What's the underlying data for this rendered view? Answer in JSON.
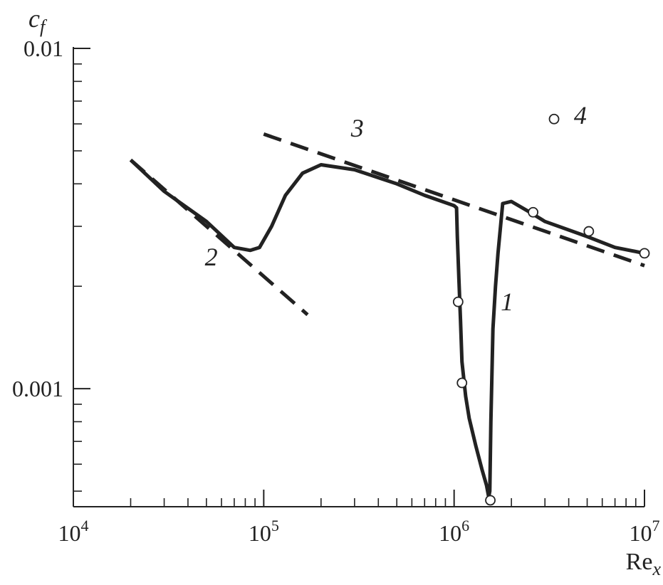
{
  "chart_data": {
    "type": "line",
    "xlabel": "Re",
    "xlabel_sub": "x",
    "ylabel": "c",
    "ylabel_sub": "f",
    "xscale": "log",
    "yscale": "log",
    "xlim": [
      10000,
      10000000
    ],
    "ylim": [
      0.00045,
      0.01
    ],
    "x_ticks": [
      {
        "value": 10000,
        "base": "10",
        "exp": "4"
      },
      {
        "value": 100000,
        "base": "10",
        "exp": "5"
      },
      {
        "value": 1000000,
        "base": "10",
        "exp": "6"
      },
      {
        "value": 10000000,
        "base": "10",
        "exp": "7"
      }
    ],
    "y_ticks": [
      {
        "value": 0.001,
        "label": "0.001"
      },
      {
        "value": 0.01,
        "label": "0.01"
      }
    ],
    "series": [
      {
        "label": "1",
        "style": "solid",
        "x": [
          20000,
          30000,
          50000,
          70000,
          85000,
          95000,
          110000,
          130000,
          160000,
          200000,
          300000,
          500000,
          700000,
          1000000,
          1030000,
          1040000,
          1060000,
          1080000,
          1100000,
          1150000,
          1200000,
          1300000,
          1400000,
          1480000,
          1520000,
          1540000,
          1560000,
          1600000,
          1650000,
          1700000,
          1800000,
          2000000,
          2500000,
          3000000,
          5000000,
          7000000,
          10000000
        ],
        "y": [
          0.0047,
          0.0038,
          0.0031,
          0.0026,
          0.00255,
          0.0026,
          0.003,
          0.0037,
          0.0043,
          0.00455,
          0.0044,
          0.004,
          0.0037,
          0.00345,
          0.0034,
          0.0028,
          0.0021,
          0.0016,
          0.0012,
          0.00095,
          0.00082,
          0.00068,
          0.00058,
          0.00052,
          0.00048,
          0.0005,
          0.0008,
          0.0015,
          0.002,
          0.0025,
          0.0035,
          0.00355,
          0.0033,
          0.0031,
          0.0028,
          0.0026,
          0.0025
        ]
      },
      {
        "label": "2",
        "style": "dashed",
        "x": [
          20000,
          170000
        ],
        "y": [
          0.0047,
          0.00165
        ]
      },
      {
        "label": "3",
        "style": "dashed",
        "x": [
          100000,
          10000000
        ],
        "y": [
          0.0056,
          0.0023
        ]
      },
      {
        "label": "4",
        "style": "markers",
        "x": [
          1050000,
          1100000,
          1550000,
          2600000,
          5100000,
          10000000
        ],
        "y": [
          0.0018,
          0.00104,
          0.00047,
          0.0033,
          0.0029,
          0.0025
        ]
      }
    ],
    "annotations": [
      {
        "text": "1",
        "x": 1900000,
        "y": 0.0017
      },
      {
        "text": "2",
        "x": 53000,
        "y": 0.0023
      },
      {
        "text": "3",
        "x": 310000,
        "y": 0.0055
      },
      {
        "text": "4",
        "x": 4600000,
        "y": 0.006
      }
    ],
    "legend_marker": {
      "x": 3350000,
      "y": 0.0062
    },
    "grid": false
  }
}
